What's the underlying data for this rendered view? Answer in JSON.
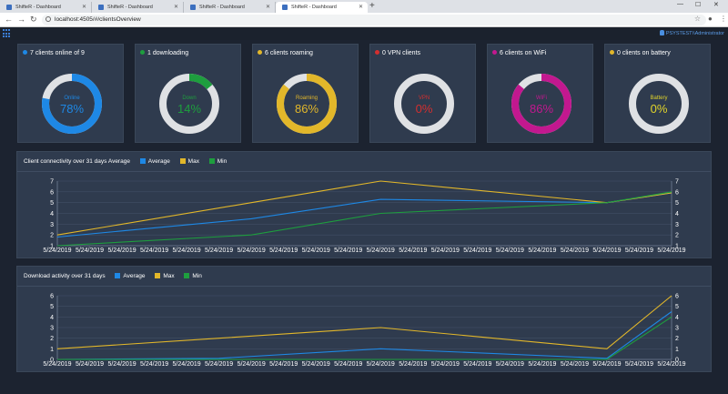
{
  "browser": {
    "tabs": [
      {
        "label": "ShifteR - Dashboard"
      },
      {
        "label": "ShifteR - Dashboard"
      },
      {
        "label": "ShifteR - Dashboard"
      },
      {
        "label": "ShifteR - Dashboard"
      }
    ],
    "url": "localhost:4505/#/clientsOverview"
  },
  "app": {
    "user": "PSYSTEST\\\\Administrator"
  },
  "stats": [
    {
      "title": "7 clients online of 9",
      "label": "Online",
      "percent_text": "78%",
      "value": 0.78,
      "color": "#1e88e5",
      "dot": "#1e88e5",
      "icon": "online-dot-icon"
    },
    {
      "title": "1 downloading",
      "label": "Down",
      "percent_text": "14%",
      "value": 0.14,
      "color": "#1e9e3e",
      "dot": "#1e9e3e",
      "icon": "download-dot-icon"
    },
    {
      "title": "6 clients roaming",
      "label": "Roaming",
      "percent_text": "86%",
      "value": 0.86,
      "color": "#e2b72a",
      "dot": "#e2b72a",
      "icon": "roaming-icon"
    },
    {
      "title": "0 VPN clients",
      "label": "VPN",
      "percent_text": "0%",
      "value": 0.0,
      "color": "#d32f2f",
      "dot": "#d32f2f",
      "icon": "vpn-dot-icon"
    },
    {
      "title": "6 clients on WiFi",
      "label": "WiFi",
      "percent_text": "86%",
      "value": 0.86,
      "color": "#c2188f",
      "dot": "#c2188f",
      "icon": "wifi-dot-icon"
    },
    {
      "title": "0 clients on battery",
      "label": "Battery",
      "percent_text": "0%",
      "value": 0.0,
      "color": "#e2d52a",
      "dot": "#e2b72a",
      "icon": "battery-icon"
    }
  ],
  "chart_data": [
    {
      "type": "line",
      "title": "Client connectivity over 31 days Average",
      "legend": [
        "Average",
        "Max",
        "Min"
      ],
      "x": [
        "5/24/2019",
        "5/24/2019",
        "5/24/2019",
        "5/24/2019",
        "5/24/2019",
        "5/24/2019",
        "5/24/2019",
        "5/24/2019",
        "5/24/2019",
        "5/24/2019",
        "5/24/2019",
        "5/24/2019",
        "5/24/2019",
        "5/24/2019",
        "5/24/2019",
        "5/24/2019",
        "5/24/2019",
        "5/24/2019",
        "5/24/2019",
        "5/24/2019"
      ],
      "ylim": [
        1,
        7
      ],
      "y_ticks": [
        1,
        2,
        3,
        4,
        5,
        6,
        7
      ],
      "series": [
        {
          "name": "Average",
          "color": "#1e88e5",
          "points": [
            [
              0,
              1.8
            ],
            [
              6,
              3.5
            ],
            [
              10,
              5.3
            ],
            [
              17,
              5.0
            ],
            [
              19,
              5.9
            ]
          ]
        },
        {
          "name": "Max",
          "color": "#e2b72a",
          "points": [
            [
              0,
              2.0
            ],
            [
              6,
              5.0
            ],
            [
              10,
              7.0
            ],
            [
              17,
              5.0
            ],
            [
              19,
              5.9
            ]
          ]
        },
        {
          "name": "Min",
          "color": "#1e9e3e",
          "points": [
            [
              0,
              1.0
            ],
            [
              6,
              2.0
            ],
            [
              10,
              4.0
            ],
            [
              17,
              5.0
            ],
            [
              19,
              6.0
            ]
          ]
        }
      ]
    },
    {
      "type": "line",
      "title": "Download activity over 31 days",
      "legend": [
        "Average",
        "Max",
        "Min"
      ],
      "x": [
        "5/24/2019",
        "5/24/2019",
        "5/24/2019",
        "5/24/2019",
        "5/24/2019",
        "5/24/2019",
        "5/24/2019",
        "5/24/2019",
        "5/24/2019",
        "5/24/2019",
        "5/24/2019",
        "5/24/2019",
        "5/24/2019",
        "5/24/2019",
        "5/24/2019",
        "5/24/2019",
        "5/24/2019",
        "5/24/2019",
        "5/24/2019",
        "5/24/2019"
      ],
      "ylim": [
        0,
        6
      ],
      "y_ticks": [
        0,
        1,
        2,
        3,
        4,
        5,
        6
      ],
      "series": [
        {
          "name": "Average",
          "color": "#1e88e5",
          "points": [
            [
              0,
              0.0
            ],
            [
              5,
              0.1
            ],
            [
              10,
              1.0
            ],
            [
              17,
              0.1
            ],
            [
              19,
              4.5
            ]
          ]
        },
        {
          "name": "Max",
          "color": "#e2b72a",
          "points": [
            [
              0,
              1.0
            ],
            [
              5,
              2.0
            ],
            [
              10,
              3.0
            ],
            [
              17,
              1.0
            ],
            [
              19,
              6.0
            ]
          ]
        },
        {
          "name": "Min",
          "color": "#1e9e3e",
          "points": [
            [
              0,
              0.0
            ],
            [
              5,
              0.0
            ],
            [
              10,
              0.0
            ],
            [
              17,
              0.0
            ],
            [
              19,
              4.0
            ]
          ]
        }
      ]
    }
  ]
}
